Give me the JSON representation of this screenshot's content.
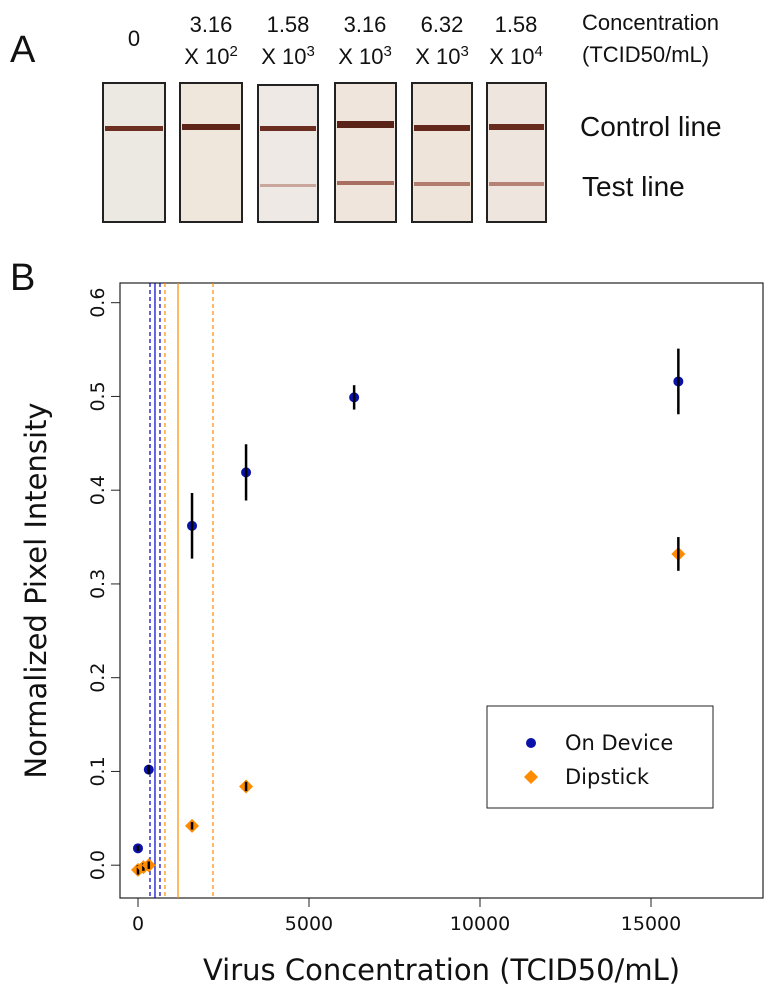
{
  "panel_a": {
    "label": "A",
    "header": {
      "line1": "Concentration",
      "line2": "(TCID50/mL)"
    },
    "columns": [
      {
        "mantissa": "0"
      },
      {
        "mantissa": "3.16",
        "base": "X 10",
        "exponent": "2"
      },
      {
        "mantissa": "1.58",
        "base": "X 10",
        "exponent": "3"
      },
      {
        "mantissa": "3.16",
        "base": "X 10",
        "exponent": "3"
      },
      {
        "mantissa": "6.32",
        "base": "X 10",
        "exponent": "3"
      },
      {
        "mantissa": "1.58",
        "base": "X 10",
        "exponent": "4"
      }
    ],
    "row_labels": [
      "Control line",
      "Test line"
    ]
  },
  "chart_data": {
    "type": "scatter",
    "panel_label": "B",
    "x_label": "Virus Concentration (TCID50/mL)",
    "y_label": "Normalized Pixel Intensity",
    "xlim": [
      -526,
      18275
    ],
    "ylim": [
      -0.035,
      0.621
    ],
    "xticks": [
      0,
      5000,
      10000,
      15000
    ],
    "yticks": [
      {
        "value": 0,
        "label": "0.0"
      },
      {
        "value": 0.1,
        "label": "0.1"
      },
      {
        "value": 0.2,
        "label": "0.2"
      },
      {
        "value": 0.3,
        "label": "0.3"
      },
      {
        "value": 0.4,
        "label": "0.4"
      },
      {
        "value": 0.5,
        "label": "0.5"
      },
      {
        "value": 0.6,
        "label": "0.6"
      }
    ],
    "legend": "bottom-right",
    "vlines": [
      {
        "x": 351,
        "color": "#0000cc",
        "style": "dashed"
      },
      {
        "x": 497,
        "color": "#0000cc",
        "style": "solid"
      },
      {
        "x": 643,
        "color": "#0000cc",
        "style": "dashed"
      },
      {
        "x": 789,
        "color": "#ff8c00",
        "style": "dashed"
      },
      {
        "x": 1170,
        "color": "#ff8c00",
        "style": "solid"
      },
      {
        "x": 2193,
        "color": "#ff8c00",
        "style": "dashed"
      }
    ],
    "series": [
      {
        "name": "On Device",
        "color": "#0a12a8",
        "marker": "circle",
        "x": [
          0,
          316,
          1580,
          3160,
          6320,
          15800
        ],
        "values": [
          0.018,
          0.102,
          0.362,
          0.419,
          0.499,
          0.516
        ],
        "errors": [
          0.003,
          0.005,
          0.035,
          0.03,
          0.013,
          0.035
        ]
      },
      {
        "name": "Dipstick",
        "color": "#ff8c00",
        "marker": "diamond",
        "x": [
          0,
          158,
          316,
          1580,
          3160,
          15800
        ],
        "values": [
          -0.005,
          -0.002,
          0.0,
          0.042,
          0.084,
          0.332
        ],
        "errors": [
          0.005,
          0.004,
          0.004,
          0.004,
          0.005,
          0.018
        ]
      }
    ]
  }
}
